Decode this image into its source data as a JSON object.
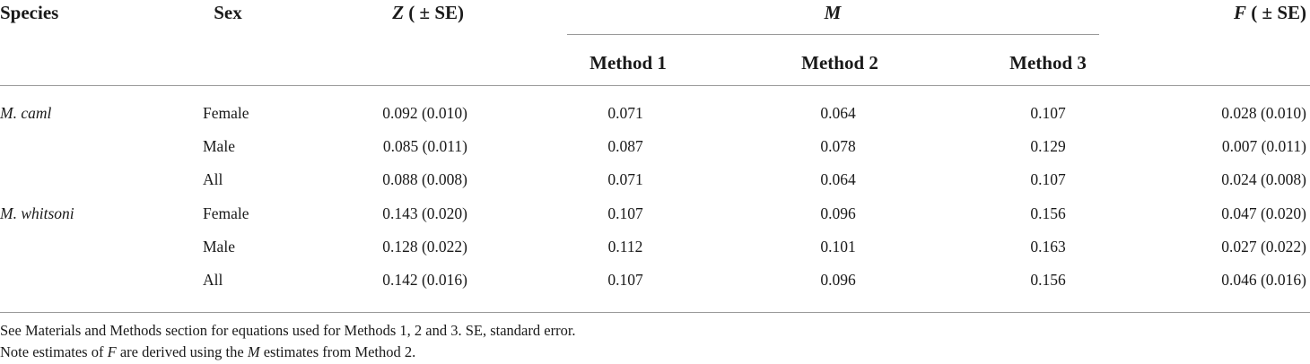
{
  "table": {
    "header": {
      "species": "Species",
      "sex": "Sex",
      "z": {
        "symbol": "Z",
        "suffix": " ( ± SE)"
      },
      "m": "M",
      "methods": [
        "Method 1",
        "Method 2",
        "Method 3"
      ],
      "f": {
        "symbol": "F",
        "suffix": " ( ± SE)"
      }
    },
    "groups": [
      {
        "species": "M. caml",
        "rows": [
          [
            "Female",
            "0.092 (0.010)",
            "0.071",
            "0.064",
            "0.107",
            "0.028 (0.010)"
          ],
          [
            "Male",
            "0.085 (0.011)",
            "0.087",
            "0.078",
            "0.129",
            "0.007 (0.011)"
          ],
          [
            "All",
            "0.088 (0.008)",
            "0.071",
            "0.064",
            "0.107",
            "0.024 (0.008)"
          ]
        ]
      },
      {
        "species": "M. whitsoni",
        "rows": [
          [
            "Female",
            "0.143 (0.020)",
            "0.107",
            "0.096",
            "0.156",
            "0.047 (0.020)"
          ],
          [
            "Male",
            "0.128 (0.022)",
            "0.112",
            "0.101",
            "0.163",
            "0.027 (0.022)"
          ],
          [
            "All",
            "0.142 (0.016)",
            "0.107",
            "0.096",
            "0.156",
            "0.046 (0.016)"
          ]
        ]
      }
    ],
    "footnotes": [
      [
        "See Materials and Methods section for equations used for Methods 1, 2 and 3. SE, standard error."
      ],
      [
        "Note estimates of ",
        "F",
        " are derived using the ",
        "M",
        " estimates from Method 2."
      ]
    ]
  }
}
